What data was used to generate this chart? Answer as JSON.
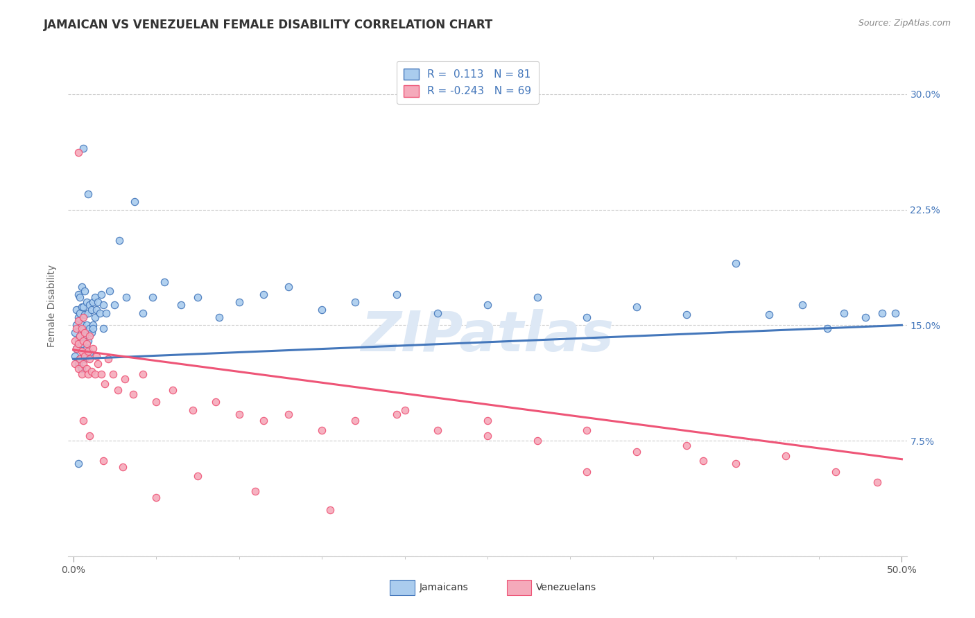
{
  "title": "JAMAICAN VS VENEZUELAN FEMALE DISABILITY CORRELATION CHART",
  "source_text": "Source: ZipAtlas.com",
  "xlabel_jamaican": "Jamaicans",
  "xlabel_venezuelan": "Venezuelans",
  "ylabel": "Female Disability",
  "xlim": [
    0.0,
    0.5
  ],
  "ylim": [
    0.0,
    0.325
  ],
  "yticks": [
    0.0,
    0.075,
    0.15,
    0.225,
    0.3
  ],
  "ytick_labels": [
    "",
    "7.5%",
    "15.0%",
    "22.5%",
    "30.0%"
  ],
  "grid_color": "#cccccc",
  "background_color": "#ffffff",
  "jamaican_color": "#aaccee",
  "venezuelan_color": "#f5aabb",
  "jamaican_line_color": "#4477bb",
  "venezuelan_line_color": "#ee5577",
  "legend_R_jamaican": "R =  0.113",
  "legend_N_jamaican": "N = 81",
  "legend_R_venezuelan": "R = -0.243",
  "legend_N_venezuelan": "N = 69",
  "watermark": "ZIPatlas",
  "title_fontsize": 12,
  "axis_label_fontsize": 10,
  "tick_fontsize": 10,
  "legend_fontsize": 11,
  "blue_line_y0": 0.128,
  "blue_line_y1": 0.15,
  "pink_line_y0": 0.134,
  "pink_line_y1": 0.063,
  "jamaican_x": [
    0.001,
    0.001,
    0.002,
    0.002,
    0.002,
    0.003,
    0.003,
    0.003,
    0.003,
    0.004,
    0.004,
    0.004,
    0.004,
    0.005,
    0.005,
    0.005,
    0.005,
    0.005,
    0.006,
    0.006,
    0.006,
    0.007,
    0.007,
    0.007,
    0.007,
    0.008,
    0.008,
    0.008,
    0.009,
    0.009,
    0.01,
    0.01,
    0.01,
    0.011,
    0.011,
    0.012,
    0.012,
    0.013,
    0.013,
    0.014,
    0.015,
    0.016,
    0.017,
    0.018,
    0.02,
    0.022,
    0.025,
    0.028,
    0.032,
    0.037,
    0.042,
    0.048,
    0.055,
    0.065,
    0.075,
    0.088,
    0.1,
    0.115,
    0.13,
    0.15,
    0.17,
    0.195,
    0.22,
    0.25,
    0.28,
    0.31,
    0.34,
    0.37,
    0.4,
    0.42,
    0.44,
    0.455,
    0.465,
    0.478,
    0.488,
    0.496,
    0.003,
    0.006,
    0.009,
    0.012,
    0.018
  ],
  "jamaican_y": [
    0.13,
    0.145,
    0.135,
    0.15,
    0.16,
    0.125,
    0.14,
    0.155,
    0.17,
    0.128,
    0.143,
    0.158,
    0.168,
    0.122,
    0.138,
    0.15,
    0.162,
    0.175,
    0.132,
    0.147,
    0.162,
    0.128,
    0.143,
    0.157,
    0.172,
    0.135,
    0.15,
    0.165,
    0.14,
    0.158,
    0.132,
    0.148,
    0.163,
    0.145,
    0.16,
    0.15,
    0.165,
    0.155,
    0.168,
    0.16,
    0.165,
    0.158,
    0.17,
    0.163,
    0.158,
    0.172,
    0.163,
    0.205,
    0.168,
    0.23,
    0.158,
    0.168,
    0.178,
    0.163,
    0.168,
    0.155,
    0.165,
    0.17,
    0.175,
    0.16,
    0.165,
    0.17,
    0.158,
    0.163,
    0.168,
    0.155,
    0.162,
    0.157,
    0.19,
    0.157,
    0.163,
    0.148,
    0.158,
    0.155,
    0.158,
    0.158,
    0.06,
    0.265,
    0.235,
    0.148,
    0.148
  ],
  "venezuelan_x": [
    0.001,
    0.001,
    0.002,
    0.002,
    0.003,
    0.003,
    0.003,
    0.004,
    0.004,
    0.005,
    0.005,
    0.005,
    0.006,
    0.006,
    0.006,
    0.007,
    0.007,
    0.008,
    0.008,
    0.009,
    0.009,
    0.01,
    0.01,
    0.011,
    0.012,
    0.013,
    0.014,
    0.015,
    0.017,
    0.019,
    0.021,
    0.024,
    0.027,
    0.031,
    0.036,
    0.042,
    0.05,
    0.06,
    0.072,
    0.086,
    0.1,
    0.115,
    0.13,
    0.15,
    0.17,
    0.195,
    0.22,
    0.25,
    0.28,
    0.31,
    0.34,
    0.37,
    0.4,
    0.43,
    0.46,
    0.485,
    0.38,
    0.31,
    0.25,
    0.2,
    0.155,
    0.11,
    0.075,
    0.05,
    0.03,
    0.018,
    0.01,
    0.006,
    0.003
  ],
  "venezuelan_y": [
    0.14,
    0.125,
    0.135,
    0.148,
    0.122,
    0.138,
    0.153,
    0.128,
    0.143,
    0.118,
    0.133,
    0.148,
    0.125,
    0.14,
    0.155,
    0.13,
    0.145,
    0.122,
    0.138,
    0.118,
    0.133,
    0.128,
    0.143,
    0.12,
    0.135,
    0.118,
    0.13,
    0.125,
    0.118,
    0.112,
    0.128,
    0.118,
    0.108,
    0.115,
    0.105,
    0.118,
    0.1,
    0.108,
    0.095,
    0.1,
    0.092,
    0.088,
    0.092,
    0.082,
    0.088,
    0.092,
    0.082,
    0.088,
    0.075,
    0.082,
    0.068,
    0.072,
    0.06,
    0.065,
    0.055,
    0.048,
    0.062,
    0.055,
    0.078,
    0.095,
    0.03,
    0.042,
    0.052,
    0.038,
    0.058,
    0.062,
    0.078,
    0.088,
    0.262
  ]
}
